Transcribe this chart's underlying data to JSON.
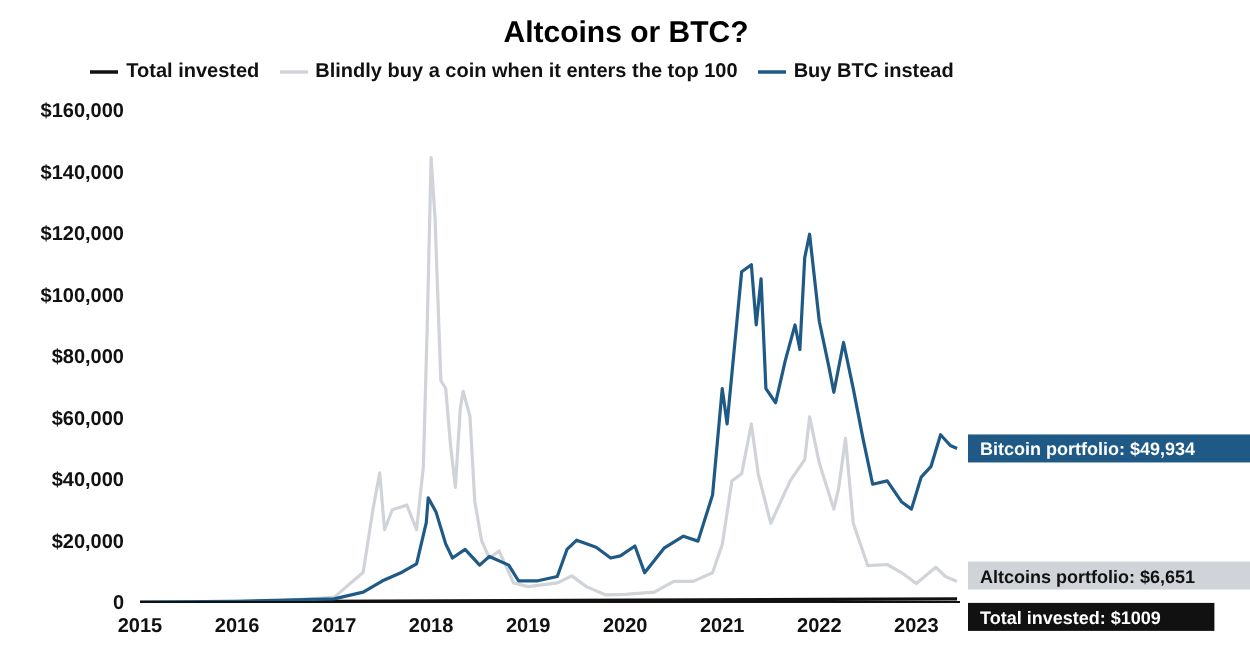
{
  "chart_data": {
    "type": "line",
    "title": "Altcoins or BTC?",
    "legend": "top",
    "grid": false,
    "marker": "none",
    "line_style": "solid",
    "xlim": [
      2015,
      2023.45
    ],
    "xticks": [
      2015,
      2016,
      2017,
      2018,
      2019,
      2020,
      2021,
      2022,
      2023
    ],
    "ylim": [
      0,
      160000
    ],
    "yticks": [
      {
        "value": 0,
        "label": "0"
      },
      {
        "value": 20000,
        "label": "$20,000"
      },
      {
        "value": 40000,
        "label": "$40,000"
      },
      {
        "value": 60000,
        "label": "$60,000"
      },
      {
        "value": 80000,
        "label": "$80,000"
      },
      {
        "value": 100000,
        "label": "$100,000"
      },
      {
        "value": 120000,
        "label": "$120,000"
      },
      {
        "value": 140000,
        "label": "$140,000"
      },
      {
        "value": 160000,
        "label": "$160,000"
      }
    ],
    "series": [
      {
        "name": "Total invested",
        "color": "#111111",
        "x": [
          2015,
          2023.42
        ],
        "values": [
          0,
          1009
        ]
      },
      {
        "name": "Blindly buy a coin when it enters the top 100",
        "color": "#d0d3d8",
        "x": [
          2015,
          2016,
          2016.5,
          2017,
          2017.3,
          2017.4,
          2017.47,
          2017.52,
          2017.6,
          2017.75,
          2017.85,
          2017.92,
          2017.96,
          2018,
          2018.04,
          2018.1,
          2018.15,
          2018.2,
          2018.25,
          2018.3,
          2018.33,
          2018.4,
          2018.45,
          2018.52,
          2018.6,
          2018.7,
          2018.85,
          2019,
          2019.3,
          2019.45,
          2019.6,
          2019.8,
          2020,
          2020.3,
          2020.5,
          2020.7,
          2020.9,
          2021,
          2021.1,
          2021.2,
          2021.3,
          2021.37,
          2021.5,
          2021.6,
          2021.7,
          2021.85,
          2021.9,
          2022,
          2022.15,
          2022.2,
          2022.27,
          2022.35,
          2022.5,
          2022.7,
          2022.85,
          2023,
          2023.2,
          2023.3,
          2023.42
        ],
        "values": [
          0,
          200,
          500,
          1500,
          9700,
          30000,
          42000,
          23500,
          30000,
          31500,
          23500,
          44000,
          90000,
          144500,
          125000,
          72000,
          69500,
          51000,
          37300,
          62700,
          68500,
          60400,
          32700,
          20000,
          14300,
          16600,
          6200,
          5000,
          6200,
          8500,
          5000,
          2300,
          2500,
          3200,
          6700,
          6700,
          9500,
          18700,
          39400,
          41700,
          57900,
          41700,
          25600,
          32500,
          39400,
          46300,
          60200,
          45200,
          30200,
          37100,
          53200,
          25600,
          11800,
          12200,
          9500,
          6000,
          11300,
          8300,
          6651
        ]
      },
      {
        "name": "Buy BTC instead",
        "color": "#1f5a87",
        "x": [
          2015,
          2016,
          2016.5,
          2017,
          2017.3,
          2017.5,
          2017.7,
          2017.85,
          2017.95,
          2017.97,
          2018.05,
          2018.15,
          2018.22,
          2018.35,
          2018.5,
          2018.6,
          2018.8,
          2018.9,
          2019.1,
          2019.3,
          2019.4,
          2019.5,
          2019.7,
          2019.85,
          2019.95,
          2020.1,
          2020.2,
          2020.4,
          2020.6,
          2020.75,
          2020.9,
          2021,
          2021.05,
          2021.2,
          2021.3,
          2021.35,
          2021.4,
          2021.45,
          2021.55,
          2021.65,
          2021.75,
          2021.8,
          2021.85,
          2021.9,
          2022,
          2022.1,
          2022.15,
          2022.25,
          2022.35,
          2022.45,
          2022.55,
          2022.7,
          2022.85,
          2022.95,
          2023.05,
          2023.15,
          2023.25,
          2023.35,
          2023.42
        ],
        "values": [
          0,
          200,
          600,
          1000,
          3200,
          6900,
          9700,
          12400,
          25800,
          33900,
          29300,
          18900,
          14300,
          17100,
          12000,
          14800,
          12000,
          6900,
          6900,
          8300,
          17100,
          20100,
          17800,
          14300,
          15000,
          18200,
          9500,
          17500,
          21400,
          19800,
          34800,
          69400,
          57900,
          107400,
          109700,
          90100,
          105100,
          69400,
          64800,
          78600,
          90100,
          82100,
          112000,
          119600,
          91300,
          76300,
          68200,
          84400,
          69400,
          53200,
          38300,
          39400,
          32500,
          30200,
          40600,
          44000,
          54400,
          50900,
          49934
        ]
      }
    ],
    "annotations": [
      "Bitcoin portfolio: $49,934",
      "Altcoins portfolio: $6,651",
      "Total invested: $1009"
    ]
  }
}
